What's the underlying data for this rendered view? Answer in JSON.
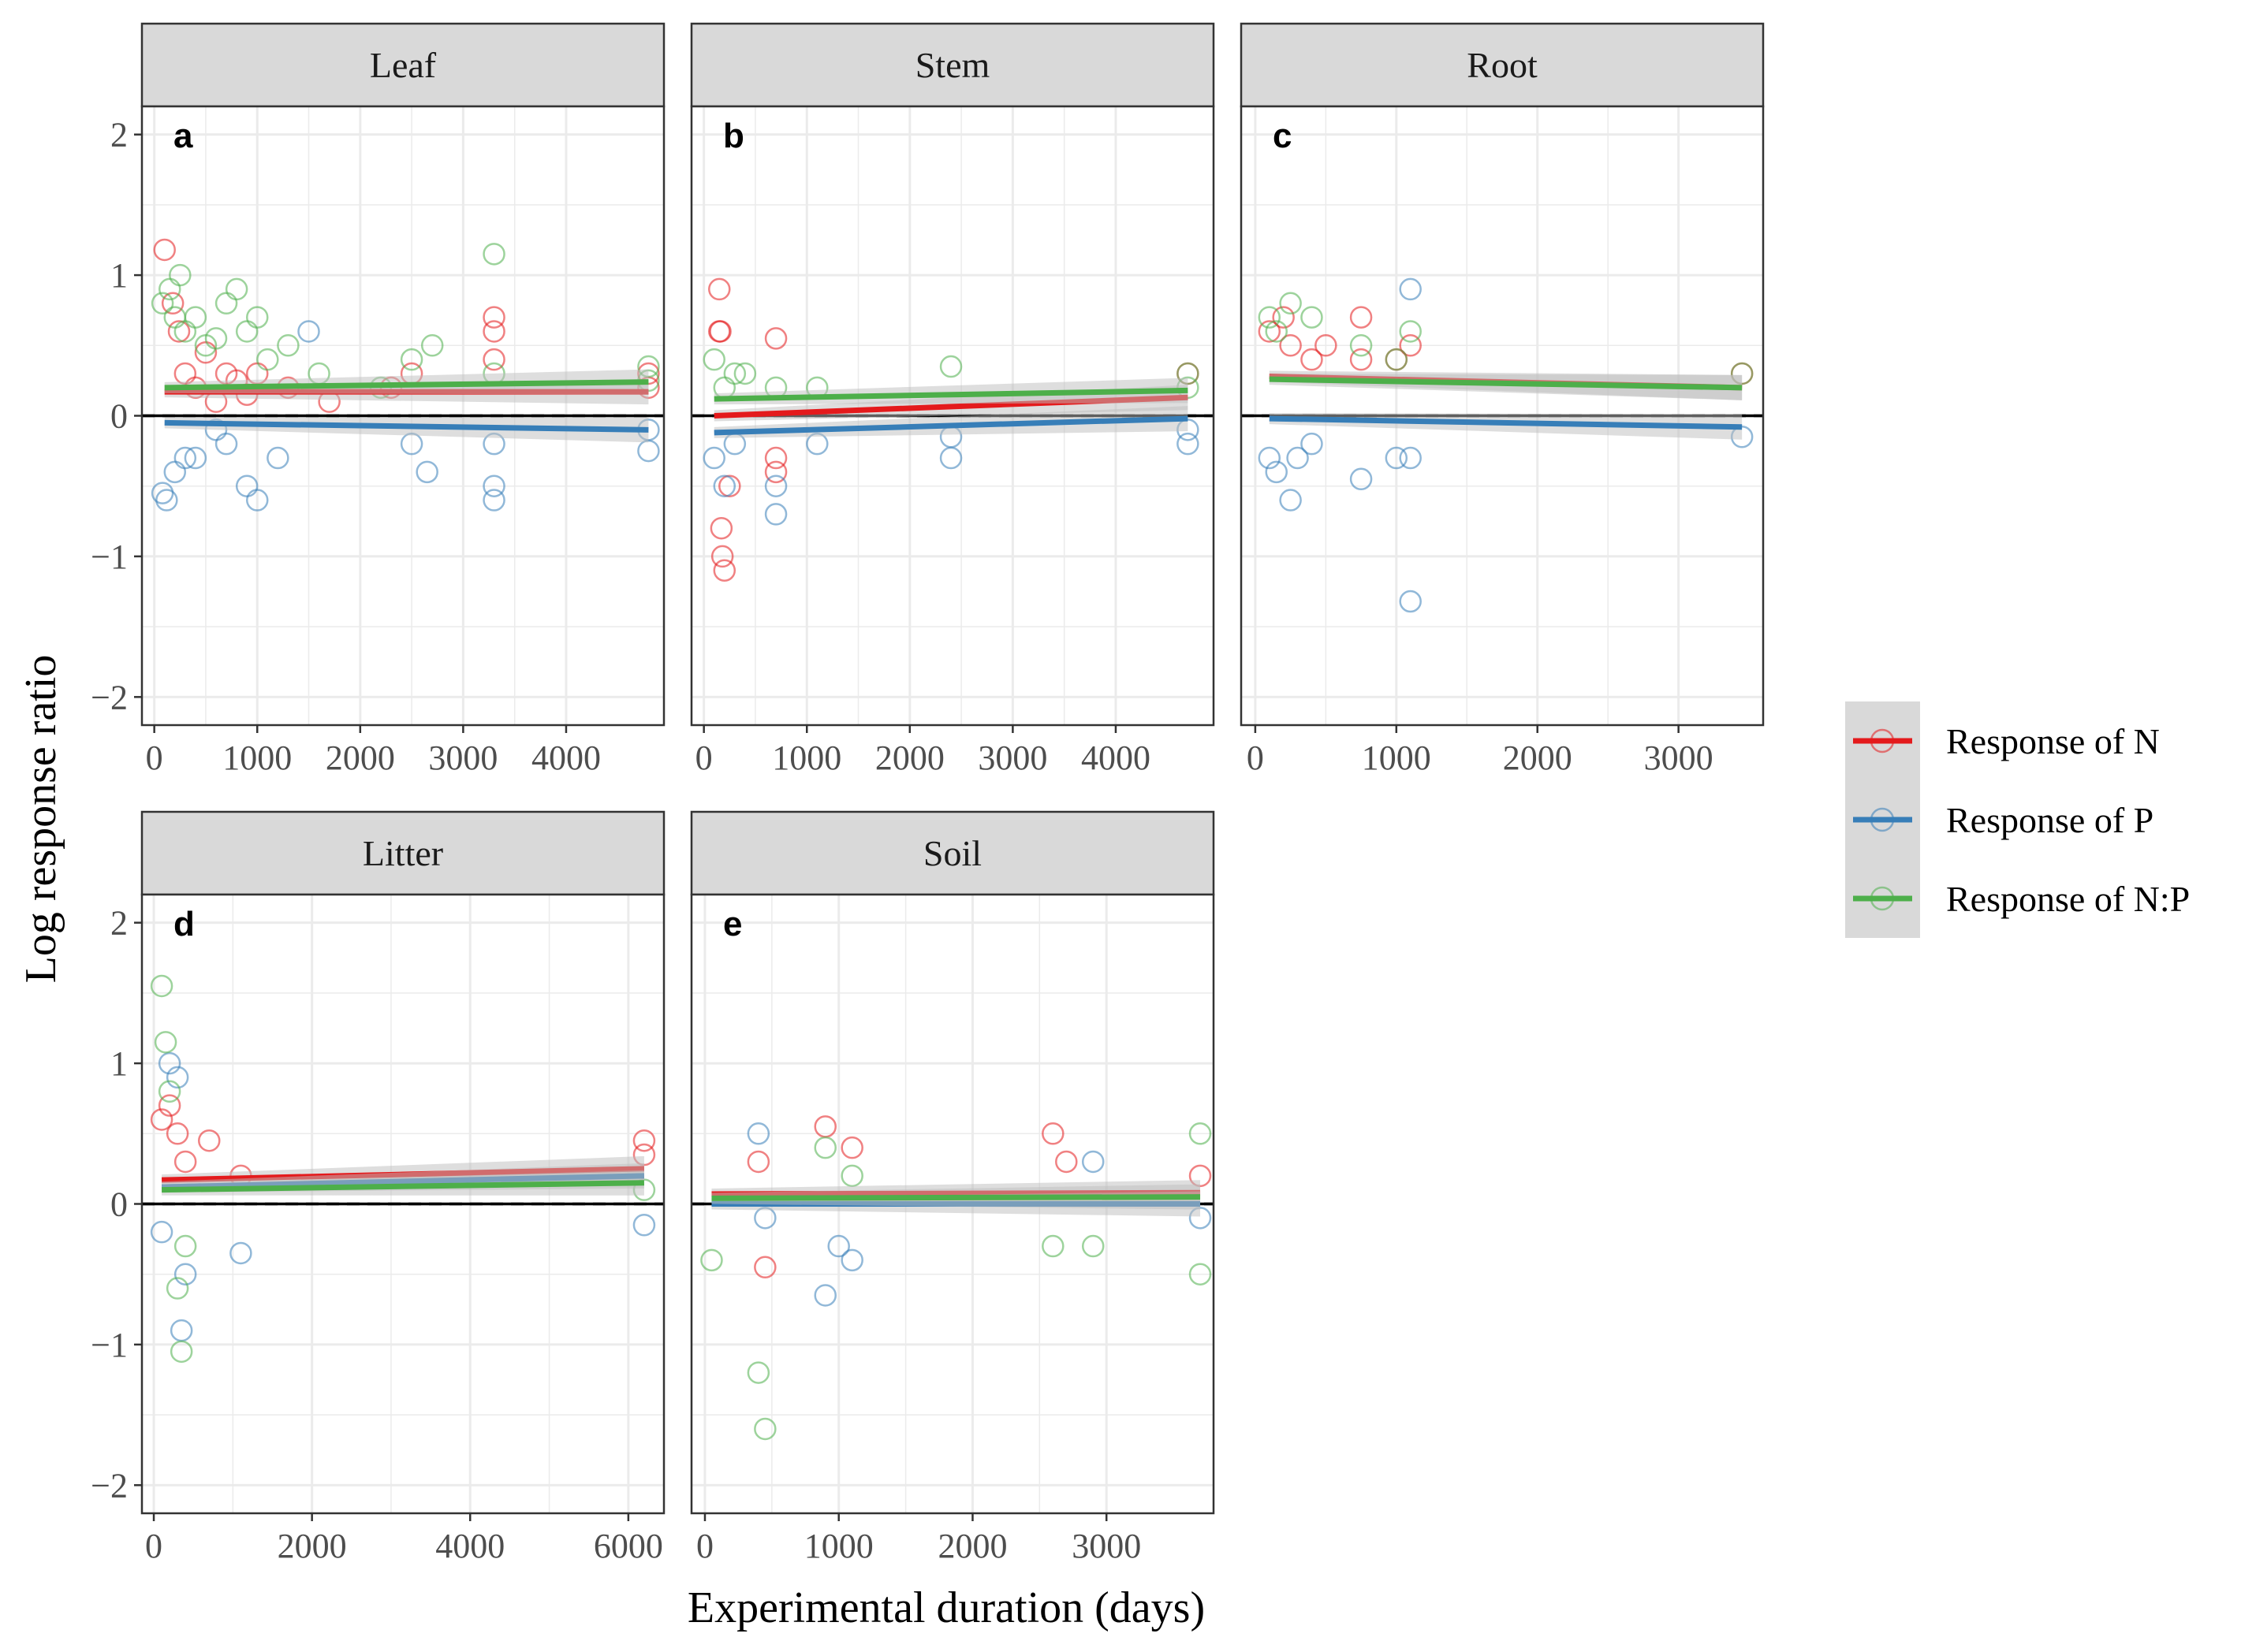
{
  "colors": {
    "N": "#e41a1c",
    "P": "#377eb8",
    "NP": "#4daf4a",
    "strip_fill": "#d9d9d9",
    "grid": "#ebebeb",
    "ci_band": "#bdbdbd",
    "legend_key_bg": "#d9d9d9"
  },
  "axes": {
    "x_title": "Experimental duration (days)",
    "y_title": "Log response ratio"
  },
  "legend": {
    "items": [
      {
        "key": "N",
        "label": "Response of N"
      },
      {
        "key": "P",
        "label": "Response of P"
      },
      {
        "key": "NP",
        "label": "Response of N:P"
      }
    ]
  },
  "chart_data": [
    {
      "type": "scatter",
      "title": "Leaf",
      "letter": "a",
      "xlabel": "Experimental duration (days)",
      "ylabel": "Log response ratio",
      "xlim": [
        -120,
        4950
      ],
      "ylim": [
        -2.2,
        2.2
      ],
      "x_ticks": [
        0,
        1000,
        2000,
        3000,
        4000
      ],
      "x_tick_labels": [
        "0",
        "1000",
        "2000",
        "3000",
        "4000"
      ],
      "y_ticks": [
        -2,
        -1,
        0,
        1,
        2
      ],
      "y_tick_labels": [
        "−2",
        "−1",
        "0",
        "1",
        "2"
      ],
      "reference_line": 0,
      "trend_lines": {
        "N": {
          "x": [
            100,
            4800
          ],
          "y": [
            0.17,
            0.17
          ]
        },
        "P": {
          "x": [
            100,
            4800
          ],
          "y": [
            -0.05,
            -0.1
          ]
        },
        "NP": {
          "x": [
            100,
            4800
          ],
          "y": [
            0.2,
            0.24
          ]
        }
      },
      "series": [
        {
          "name": "Response of N",
          "key": "N",
          "x": [
            100,
            180,
            240,
            300,
            400,
            500,
            600,
            700,
            800,
            900,
            1000,
            1300,
            1700,
            2300,
            2500,
            3300,
            3300,
            3300,
            4800,
            4800
          ],
          "y": [
            1.18,
            0.8,
            0.6,
            0.3,
            0.2,
            0.45,
            0.1,
            0.3,
            0.25,
            0.15,
            0.3,
            0.2,
            0.1,
            0.2,
            0.3,
            0.7,
            0.6,
            0.4,
            0.3,
            0.2
          ]
        },
        {
          "name": "Response of P",
          "key": "P",
          "x": [
            80,
            120,
            200,
            300,
            400,
            600,
            700,
            900,
            1000,
            1200,
            1500,
            2500,
            2650,
            3300,
            3300,
            3300,
            4800,
            4800
          ],
          "y": [
            -0.55,
            -0.6,
            -0.4,
            -0.3,
            -0.3,
            -0.1,
            -0.2,
            -0.5,
            -0.6,
            -0.3,
            0.6,
            -0.2,
            -0.4,
            -0.5,
            -0.6,
            -0.2,
            -0.1,
            -0.25
          ]
        },
        {
          "name": "Response of N:P",
          "key": "NP",
          "x": [
            80,
            150,
            200,
            250,
            300,
            400,
            500,
            600,
            700,
            800,
            900,
            1000,
            1100,
            1300,
            1600,
            2200,
            2500,
            2700,
            3300,
            3300,
            4800,
            4800
          ],
          "y": [
            0.8,
            0.9,
            0.7,
            1.0,
            0.6,
            0.7,
            0.5,
            0.55,
            0.8,
            0.9,
            0.6,
            0.7,
            0.4,
            0.5,
            0.3,
            0.2,
            0.4,
            0.5,
            1.15,
            0.3,
            0.35,
            0.25
          ]
        }
      ]
    },
    {
      "type": "scatter",
      "title": "Stem",
      "letter": "b",
      "xlabel": "Experimental duration (days)",
      "ylabel": "Log response ratio",
      "xlim": [
        -120,
        4950
      ],
      "ylim": [
        -2.2,
        2.2
      ],
      "x_ticks": [
        0,
        1000,
        2000,
        3000,
        4000
      ],
      "x_tick_labels": [
        "0",
        "1000",
        "2000",
        "3000",
        "4000"
      ],
      "y_ticks": [
        -2,
        -1,
        0,
        1,
        2
      ],
      "y_tick_labels": [
        "−2",
        "−1",
        "0",
        "1",
        "2"
      ],
      "reference_line": 0,
      "trend_lines": {
        "N": {
          "x": [
            100,
            4700
          ],
          "y": [
            0.0,
            0.13
          ]
        },
        "P": {
          "x": [
            100,
            4700
          ],
          "y": [
            -0.12,
            -0.02
          ]
        },
        "NP": {
          "x": [
            100,
            4700
          ],
          "y": [
            0.12,
            0.18
          ]
        }
      },
      "series": [
        {
          "name": "Response of N",
          "key": "N",
          "x": [
            150,
            150,
            160,
            170,
            180,
            200,
            250,
            700,
            700,
            700,
            4700
          ],
          "y": [
            0.9,
            0.6,
            0.6,
            -0.8,
            -1.0,
            -1.1,
            -0.5,
            0.55,
            -0.3,
            -0.4,
            0.3
          ]
        },
        {
          "name": "Response of P",
          "key": "P",
          "x": [
            100,
            200,
            300,
            700,
            700,
            1100,
            2400,
            2400,
            4700,
            4700
          ],
          "y": [
            -0.3,
            -0.5,
            -0.2,
            -0.5,
            -0.7,
            -0.2,
            -0.15,
            -0.3,
            -0.1,
            -0.2
          ]
        },
        {
          "name": "Response of N:P",
          "key": "NP",
          "x": [
            100,
            200,
            300,
            400,
            700,
            1100,
            2400,
            4700,
            4700
          ],
          "y": [
            0.4,
            0.2,
            0.3,
            0.3,
            0.2,
            0.2,
            0.35,
            0.3,
            0.2
          ]
        }
      ]
    },
    {
      "type": "scatter",
      "title": "Root",
      "letter": "c",
      "xlabel": "Experimental duration (days)",
      "ylabel": "Log response ratio",
      "xlim": [
        -100,
        3600
      ],
      "ylim": [
        -2.2,
        2.2
      ],
      "x_ticks": [
        0,
        1000,
        2000,
        3000
      ],
      "x_tick_labels": [
        "0",
        "1000",
        "2000",
        "3000"
      ],
      "y_ticks": [
        -2,
        -1,
        0,
        1,
        2
      ],
      "y_tick_labels": [
        "−2",
        "−1",
        "0",
        "1",
        "2"
      ],
      "reference_line": 0,
      "trend_lines": {
        "N": {
          "x": [
            100,
            3450
          ],
          "y": [
            0.28,
            0.2
          ]
        },
        "P": {
          "x": [
            100,
            3450
          ],
          "y": [
            -0.02,
            -0.08
          ]
        },
        "NP": {
          "x": [
            100,
            3450
          ],
          "y": [
            0.26,
            0.2
          ]
        }
      },
      "series": [
        {
          "name": "Response of N",
          "key": "N",
          "x": [
            100,
            200,
            250,
            400,
            500,
            750,
            750,
            1000,
            1100,
            3450
          ],
          "y": [
            0.6,
            0.7,
            0.5,
            0.4,
            0.5,
            0.7,
            0.4,
            0.4,
            0.5,
            0.3
          ]
        },
        {
          "name": "Response of P",
          "key": "P",
          "x": [
            100,
            150,
            250,
            300,
            400,
            750,
            1000,
            1100,
            1100,
            1100,
            3450
          ],
          "y": [
            -0.3,
            -0.4,
            -0.6,
            -0.3,
            -0.2,
            -0.45,
            -0.3,
            0.9,
            -1.32,
            -0.3,
            -0.15
          ]
        },
        {
          "name": "Response of N:P",
          "key": "NP",
          "x": [
            100,
            150,
            250,
            400,
            750,
            1000,
            1100,
            3450
          ],
          "y": [
            0.7,
            0.6,
            0.8,
            0.7,
            0.5,
            0.4,
            0.6,
            0.3
          ]
        }
      ]
    },
    {
      "type": "scatter",
      "title": "Litter",
      "letter": "d",
      "xlabel": "Experimental duration (days)",
      "ylabel": "Log response ratio",
      "xlim": [
        -150,
        6450
      ],
      "ylim": [
        -2.2,
        2.2
      ],
      "x_ticks": [
        0,
        2000,
        4000,
        6000
      ],
      "x_tick_labels": [
        "0",
        "2000",
        "4000",
        "6000"
      ],
      "y_ticks": [
        -2,
        -1,
        0,
        1,
        2
      ],
      "y_tick_labels": [
        "−2",
        "−1",
        "0",
        "1",
        "2"
      ],
      "reference_line": 0,
      "trend_lines": {
        "N": {
          "x": [
            100,
            6200
          ],
          "y": [
            0.17,
            0.25
          ]
        },
        "P": {
          "x": [
            100,
            6200
          ],
          "y": [
            0.12,
            0.2
          ]
        },
        "NP": {
          "x": [
            100,
            6200
          ],
          "y": [
            0.1,
            0.15
          ]
        }
      },
      "series": [
        {
          "name": "Response of N",
          "key": "N",
          "x": [
            100,
            200,
            300,
            400,
            700,
            1100,
            6200,
            6200
          ],
          "y": [
            0.6,
            0.7,
            0.5,
            0.3,
            0.45,
            0.2,
            0.45,
            0.35
          ]
        },
        {
          "name": "Response of P",
          "key": "P",
          "x": [
            100,
            200,
            300,
            350,
            400,
            1100,
            6200
          ],
          "y": [
            -0.2,
            1.0,
            0.9,
            -0.9,
            -0.5,
            -0.35,
            -0.15
          ]
        },
        {
          "name": "Response of N:P",
          "key": "NP",
          "x": [
            100,
            150,
            200,
            300,
            350,
            400,
            6200
          ],
          "y": [
            1.55,
            1.15,
            0.8,
            -0.6,
            -1.05,
            -0.3,
            0.1
          ]
        }
      ]
    },
    {
      "type": "scatter",
      "title": "Soil",
      "letter": "e",
      "xlabel": "Experimental duration (days)",
      "ylabel": "Log response ratio",
      "xlim": [
        -100,
        3800
      ],
      "ylim": [
        -2.2,
        2.2
      ],
      "x_ticks": [
        0,
        1000,
        2000,
        3000
      ],
      "x_tick_labels": [
        "0",
        "1000",
        "2000",
        "3000"
      ],
      "y_ticks": [
        -2,
        -1,
        0,
        1,
        2
      ],
      "y_tick_labels": [
        "−2",
        "−1",
        "0",
        "1",
        "2"
      ],
      "reference_line": 0,
      "trend_lines": {
        "N": {
          "x": [
            50,
            3700
          ],
          "y": [
            0.07,
            0.08
          ]
        },
        "P": {
          "x": [
            50,
            3700
          ],
          "y": [
            0.0,
            0.0
          ]
        },
        "NP": {
          "x": [
            50,
            3700
          ],
          "y": [
            0.04,
            0.05
          ]
        }
      },
      "series": [
        {
          "name": "Response of N",
          "key": "N",
          "x": [
            400,
            450,
            900,
            1100,
            2600,
            2700,
            3700
          ],
          "y": [
            0.3,
            -0.45,
            0.55,
            0.4,
            0.5,
            0.3,
            0.2
          ]
        },
        {
          "name": "Response of P",
          "key": "P",
          "x": [
            400,
            450,
            900,
            1000,
            1100,
            2900,
            3700
          ],
          "y": [
            0.5,
            -0.1,
            -0.65,
            -0.3,
            -0.4,
            0.3,
            -0.1
          ]
        },
        {
          "name": "Response of N:P",
          "key": "NP",
          "x": [
            50,
            400,
            450,
            900,
            1100,
            2600,
            2900,
            3700,
            3700
          ],
          "y": [
            -0.4,
            -1.2,
            -1.6,
            0.4,
            0.2,
            -0.3,
            -0.3,
            0.5,
            -0.5
          ]
        }
      ]
    }
  ]
}
